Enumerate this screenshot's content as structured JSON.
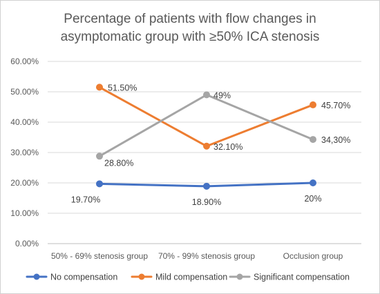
{
  "chart_data": {
    "type": "line",
    "title_lines": [
      "Percentage of patients with flow changes in",
      "asymptomatic group with ≥50% ICA stenosis"
    ],
    "categories": [
      "50% - 69% stenosis group",
      "70% - 99% stenosis group",
      "Occlusion group"
    ],
    "y_ticks": [
      "0.00%",
      "10.00%",
      "20.00%",
      "30.00%",
      "40.00%",
      "50.00%",
      "60.00%"
    ],
    "ylim": [
      0,
      60
    ],
    "grid": true,
    "legend_position": "bottom",
    "series": [
      {
        "name": "No compensation",
        "color": "#4472c4",
        "values": [
          19.7,
          18.9,
          20.0
        ],
        "labels": [
          "19.70%",
          "18.90%",
          "20%"
        ]
      },
      {
        "name": "Mild compensation",
        "color": "#ed7d31",
        "values": [
          51.5,
          32.1,
          45.7
        ],
        "labels": [
          "51.50%",
          "32.10%",
          "45.70%"
        ]
      },
      {
        "name": "Significant compensation",
        "color": "#a5a5a5",
        "values": [
          28.8,
          49.0,
          34.3
        ],
        "labels": [
          "28.80%",
          "49%",
          "34,30%"
        ]
      }
    ]
  }
}
